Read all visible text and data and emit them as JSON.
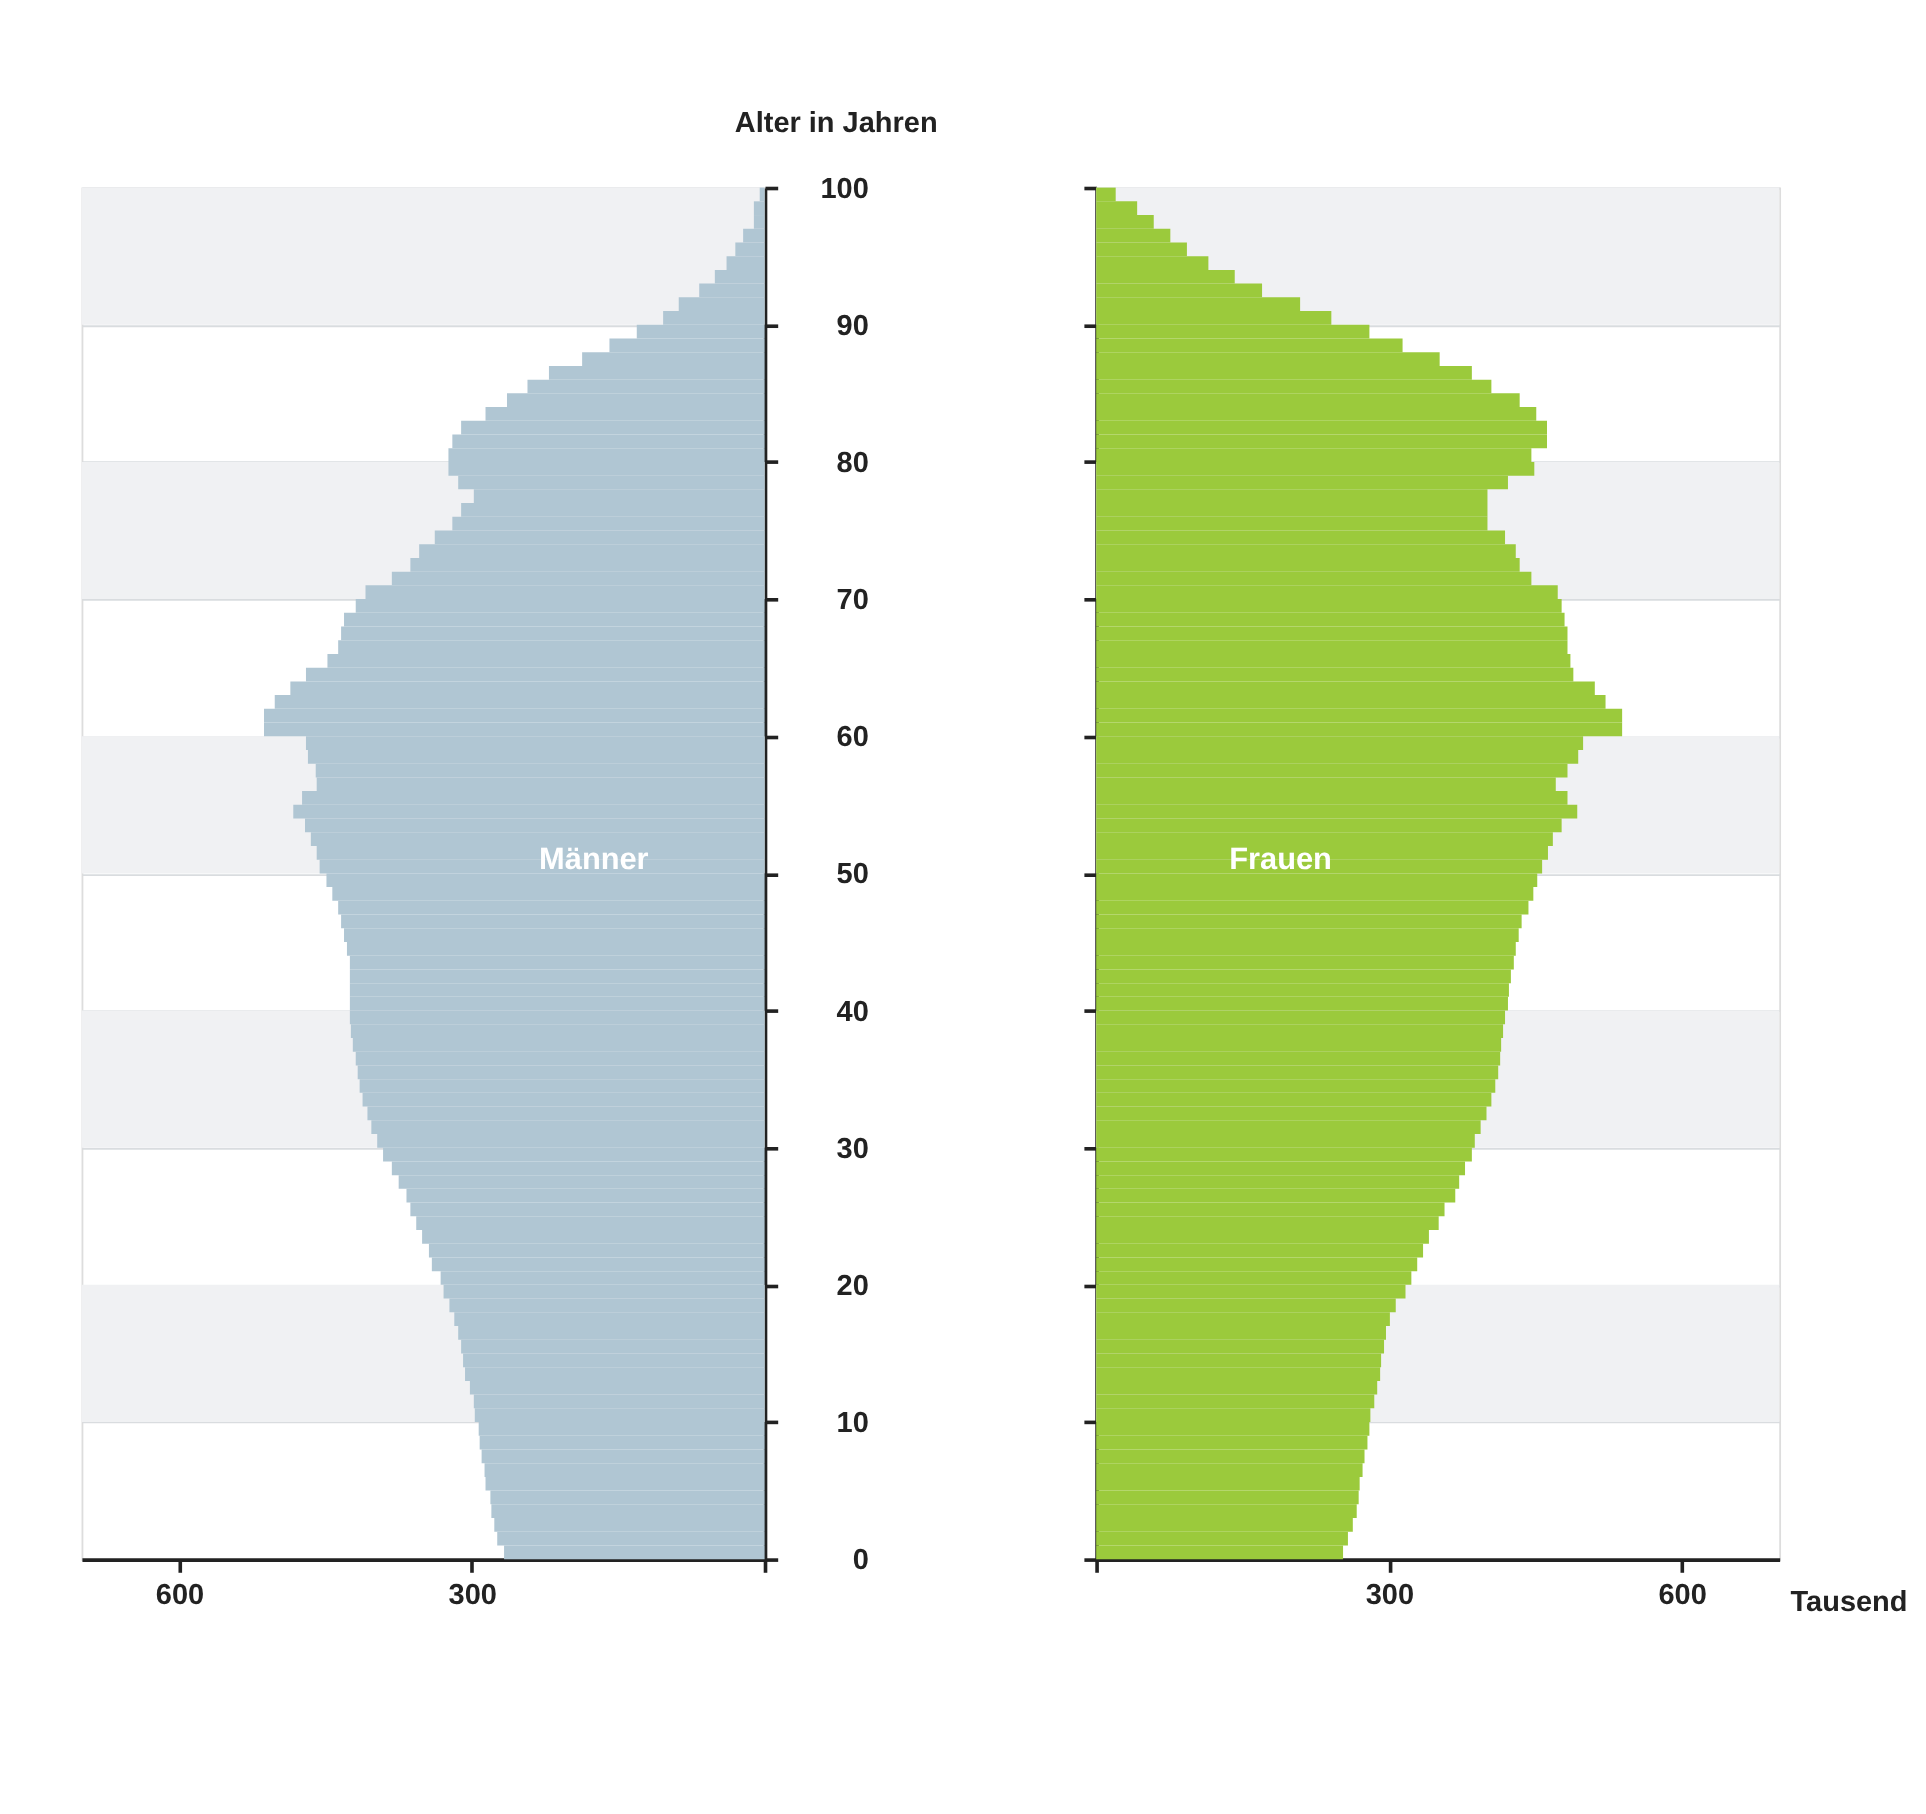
{
  "chart_data": [
    {
      "type": "bar",
      "orientation": "horizontal",
      "ylabel": "Alter in Jahren",
      "x": [
        0.5,
        1.5,
        2.5,
        3.5,
        4.5,
        5.5,
        6.5,
        7.5,
        8.5,
        9.5,
        10.5,
        11.5,
        12.5,
        13.5,
        14.5,
        15.5,
        16.5,
        17.5,
        18.5,
        19.5,
        20.5,
        21.5,
        22.5,
        23.5,
        24.5,
        25.5,
        26.5,
        27.5,
        28.5,
        29.5,
        30.5,
        31.5,
        32.5,
        33.5,
        34.5,
        35.5,
        36.5,
        37.5,
        38.5,
        39.5,
        40.5,
        41.5,
        42.5,
        43.5,
        44.5,
        45.5,
        46.5,
        47.5,
        48.5,
        49.5,
        50.5,
        51.5,
        52.5,
        53.5,
        54.5,
        55.5,
        56.5,
        57.5,
        58.5,
        59.5,
        60.5,
        61.5,
        62.5,
        63.5,
        64.5,
        65.5,
        66.5,
        67.5,
        68.5,
        69.5,
        70.5,
        71.5,
        72.5,
        73.5,
        74.5,
        75.5,
        76.5,
        77.5,
        78.5,
        79.5,
        80.5,
        81.5,
        82.5,
        83.5,
        84.5,
        85.5,
        86.5,
        87.5,
        88.5,
        89.5,
        90.5,
        91.5,
        92.5,
        93.5,
        94.5,
        95.5,
        96.5,
        97.5,
        98.5,
        99.5
      ],
      "series": [
        {
          "name": "Männer",
          "color": "#b0c6d3",
          "values": [
            267,
            274,
            277,
            280,
            281,
            286,
            287,
            290,
            292,
            293,
            297,
            298,
            302,
            307,
            309,
            311,
            314,
            318,
            323,
            329,
            332,
            341,
            344,
            351,
            357,
            363,
            367,
            375,
            382,
            391,
            397,
            403,
            407,
            412,
            415,
            417,
            419,
            422,
            424,
            425,
            425,
            425,
            425,
            425,
            428,
            431,
            434,
            437,
            443,
            449,
            456,
            459,
            465,
            471,
            483,
            474,
            459,
            460,
            468,
            470,
            513,
            513,
            502,
            486,
            470,
            448,
            437,
            434,
            431,
            419,
            409,
            382,
            363,
            354,
            338,
            320,
            311,
            298,
            314,
            324,
            324,
            320,
            311,
            286,
            264,
            243,
            221,
            187,
            159,
            131,
            104,
            88,
            67,
            51,
            39,
            30,
            22,
            11,
            11,
            5
          ]
        }
      ],
      "xlim": [
        700,
        0
      ],
      "xticks": [
        600,
        300,
        {
          "value": 0,
          "label": null
        }
      ],
      "ylim": [
        0,
        100
      ],
      "yticks": [
        0,
        10,
        20,
        30,
        40,
        50,
        60,
        70,
        80,
        90,
        100
      ],
      "grid": "y",
      "bands": [
        {
          "axis": "y",
          "from": 10,
          "to": 20,
          "color": "#f0f1f3"
        },
        {
          "axis": "y",
          "from": 30,
          "to": 40,
          "color": "#f0f1f3"
        },
        {
          "axis": "y",
          "from": 50,
          "to": 60,
          "color": "#f0f1f3"
        },
        {
          "axis": "y",
          "from": 70,
          "to": 80,
          "color": "#f0f1f3"
        },
        {
          "axis": "y",
          "from": 90,
          "to": 100,
          "color": "#f0f1f3"
        }
      ]
    },
    {
      "type": "bar",
      "orientation": "horizontal",
      "xlabel": "Tausend",
      "x": [
        0.5,
        1.5,
        2.5,
        3.5,
        4.5,
        5.5,
        6.5,
        7.5,
        8.5,
        9.5,
        10.5,
        11.5,
        12.5,
        13.5,
        14.5,
        15.5,
        16.5,
        17.5,
        18.5,
        19.5,
        20.5,
        21.5,
        22.5,
        23.5,
        24.5,
        25.5,
        26.5,
        27.5,
        28.5,
        29.5,
        30.5,
        31.5,
        32.5,
        33.5,
        34.5,
        35.5,
        36.5,
        37.5,
        38.5,
        39.5,
        40.5,
        41.5,
        42.5,
        43.5,
        44.5,
        45.5,
        46.5,
        47.5,
        48.5,
        49.5,
        50.5,
        51.5,
        52.5,
        53.5,
        54.5,
        55.5,
        56.5,
        57.5,
        58.5,
        59.5,
        60.5,
        61.5,
        62.5,
        63.5,
        64.5,
        65.5,
        66.5,
        67.5,
        68.5,
        69.5,
        70.5,
        71.5,
        72.5,
        73.5,
        74.5,
        75.5,
        76.5,
        77.5,
        78.5,
        79.5,
        80.5,
        81.5,
        82.5,
        83.5,
        84.5,
        85.5,
        86.5,
        87.5,
        88.5,
        89.5,
        90.5,
        91.5,
        92.5,
        93.5,
        94.5,
        95.5,
        96.5,
        97.5,
        98.5,
        99.5
      ],
      "series": [
        {
          "name": "Frauen",
          "color": "#9bca3c",
          "values": [
            253,
            258,
            263,
            267,
            269,
            270,
            273,
            275,
            278,
            280,
            281,
            285,
            288,
            291,
            292,
            295,
            297,
            301,
            307,
            317,
            323,
            329,
            335,
            341,
            351,
            357,
            368,
            372,
            378,
            385,
            388,
            394,
            400,
            405,
            409,
            412,
            414,
            415,
            417,
            419,
            422,
            423,
            425,
            428,
            430,
            433,
            436,
            443,
            448,
            452,
            457,
            463,
            468,
            477,
            493,
            483,
            471,
            483,
            494,
            499,
            539,
            539,
            522,
            511,
            489,
            486,
            483,
            483,
            480,
            477,
            473,
            446,
            434,
            430,
            419,
            401,
            401,
            401,
            422,
            449,
            446,
            462,
            462,
            451,
            434,
            405,
            385,
            352,
            314,
            280,
            241,
            209,
            170,
            142,
            115,
            93,
            76,
            59,
            42,
            20
          ]
        }
      ],
      "xlim": [
        0,
        700
      ],
      "xticks": [
        {
          "value": 0,
          "label": null
        },
        300,
        600
      ],
      "ylim": [
        0,
        100
      ],
      "yticks": [
        0,
        10,
        20,
        30,
        40,
        50,
        60,
        70,
        80,
        90,
        100
      ],
      "grid": "y",
      "tick_labels": "x",
      "bands": [
        {
          "axis": "y",
          "from": 10,
          "to": 20,
          "color": "#f0f1f3"
        },
        {
          "axis": "y",
          "from": 30,
          "to": 40,
          "color": "#f0f1f3"
        },
        {
          "axis": "y",
          "from": 50,
          "to": 60,
          "color": "#f0f1f3"
        },
        {
          "axis": "y",
          "from": 70,
          "to": 80,
          "color": "#f0f1f3"
        },
        {
          "axis": "y",
          "from": 90,
          "to": 100,
          "color": "#f0f1f3"
        }
      ]
    }
  ]
}
